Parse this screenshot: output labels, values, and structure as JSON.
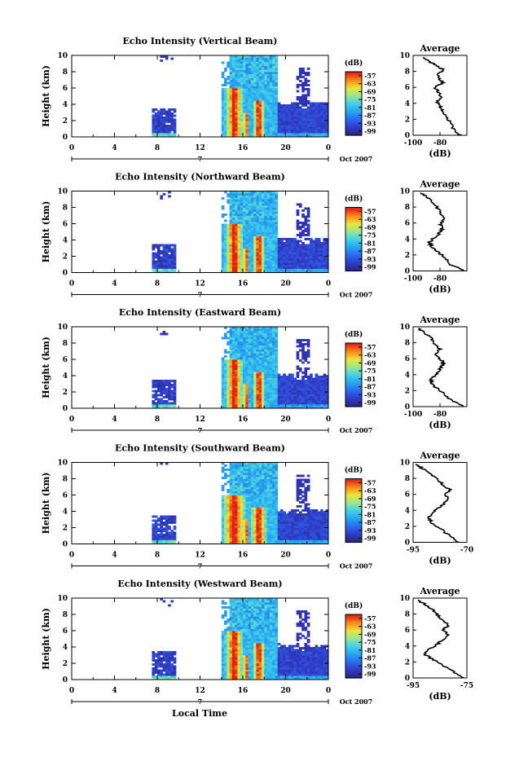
{
  "common": {
    "x_ticks": [
      "0",
      "4",
      "8",
      "12",
      "16",
      "20",
      "0"
    ],
    "x_marker": "7",
    "date": "Oct 2007",
    "y_ticks": [
      "0",
      "2",
      "4",
      "6",
      "8",
      "10"
    ],
    "ylabel": "Height (km)",
    "cb_unit": "(dB)",
    "cb_ticks": [
      "-57",
      "-63",
      "-69",
      "-75",
      "-81",
      "-87",
      "-93",
      "-99"
    ],
    "avg_title": "Average",
    "avg_xlabel": "(dB)",
    "xlabel": "Local Time"
  },
  "chart_data": [
    {
      "type": "heatmap",
      "title": "Echo Intensity (Vertical Beam)",
      "xlim": [
        0,
        24
      ],
      "ylim": [
        0,
        10
      ],
      "avg_profile": {
        "type": "line",
        "title": "Average",
        "xlabel": "(dB)",
        "xlim": [
          -100,
          -60
        ],
        "x_ticks": [
          "-100",
          "-80"
        ],
        "ylim": [
          0,
          10
        ],
        "x": [
          -65,
          -70,
          -72,
          -76,
          -78,
          -80,
          -82,
          -79,
          -81,
          -84,
          -78,
          -80,
          -82,
          -77,
          -84,
          -88,
          -94
        ],
        "y": [
          0,
          0.8,
          1.5,
          2.3,
          3.0,
          3.6,
          4.2,
          4.8,
          5.4,
          6.0,
          6.5,
          7.0,
          7.6,
          8.2,
          8.8,
          9.3,
          9.8
        ]
      }
    },
    {
      "type": "heatmap",
      "title": "Echo Intensity (Northward Beam)",
      "xlim": [
        0,
        24
      ],
      "ylim": [
        0,
        10
      ],
      "avg_profile": {
        "type": "line",
        "title": "Average",
        "xlabel": "(dB)",
        "xlim": [
          -100,
          -60
        ],
        "x_ticks": [
          "-100",
          "-80"
        ],
        "ylim": [
          0,
          10
        ],
        "x": [
          -62,
          -72,
          -76,
          -82,
          -86,
          -88,
          -84,
          -80,
          -78,
          -80,
          -76,
          -79,
          -82,
          -85,
          -90,
          -96
        ],
        "y": [
          0,
          0.8,
          1.6,
          2.4,
          3.0,
          3.6,
          4.2,
          4.8,
          5.4,
          6.0,
          6.5,
          7.2,
          7.9,
          8.6,
          9.3,
          9.9
        ]
      }
    },
    {
      "type": "heatmap",
      "title": "Echo Intensity (Eastward Beam)",
      "xlim": [
        0,
        24
      ],
      "ylim": [
        0,
        10
      ],
      "avg_profile": {
        "type": "line",
        "title": "Average",
        "xlabel": "(dB)",
        "xlim": [
          -100,
          -60
        ],
        "x_ticks": [
          "-100",
          "-80"
        ],
        "ylim": [
          0,
          10
        ],
        "x": [
          -62,
          -72,
          -77,
          -83,
          -87,
          -86,
          -82,
          -80,
          -77,
          -80,
          -83,
          -80,
          -84,
          -87,
          -92,
          -97
        ],
        "y": [
          0,
          0.8,
          1.6,
          2.4,
          3.0,
          3.6,
          4.2,
          4.8,
          5.4,
          6.0,
          6.6,
          7.2,
          7.9,
          8.6,
          9.3,
          9.9
        ]
      }
    },
    {
      "type": "heatmap",
      "title": "Echo Intensity (Southward Beam)",
      "xlim": [
        0,
        24
      ],
      "ylim": [
        0,
        10
      ],
      "avg_profile": {
        "type": "line",
        "title": "Average",
        "xlabel": "(dB)",
        "xlim": [
          -95,
          -70
        ],
        "x_ticks": [
          "-95",
          "-70"
        ],
        "ylim": [
          0,
          10
        ],
        "x": [
          -74,
          -78,
          -82,
          -86,
          -88,
          -86,
          -84,
          -81,
          -79,
          -80,
          -78,
          -81,
          -84,
          -87,
          -91,
          -94
        ],
        "y": [
          0,
          0.8,
          1.6,
          2.4,
          3.0,
          3.6,
          4.2,
          4.8,
          5.4,
          6.0,
          6.6,
          7.2,
          7.9,
          8.6,
          9.3,
          9.9
        ]
      }
    },
    {
      "type": "heatmap",
      "title": "Echo Intensity (Westward Beam)",
      "xlim": [
        0,
        24
      ],
      "ylim": [
        0,
        10
      ],
      "avg_profile": {
        "type": "line",
        "title": "Average",
        "xlabel": "(dB)",
        "xlim": [
          -95,
          -75
        ],
        "x_ticks": [
          "-95",
          "-75"
        ],
        "ylim": [
          0,
          10
        ],
        "x": [
          -76,
          -80,
          -84,
          -88,
          -91,
          -89,
          -86,
          -84,
          -82,
          -84,
          -82,
          -84,
          -86,
          -88,
          -91,
          -94
        ],
        "y": [
          0,
          0.8,
          1.6,
          2.4,
          3.0,
          3.6,
          4.2,
          4.8,
          5.4,
          6.0,
          6.6,
          7.2,
          7.9,
          8.6,
          9.3,
          9.9
        ]
      }
    }
  ]
}
